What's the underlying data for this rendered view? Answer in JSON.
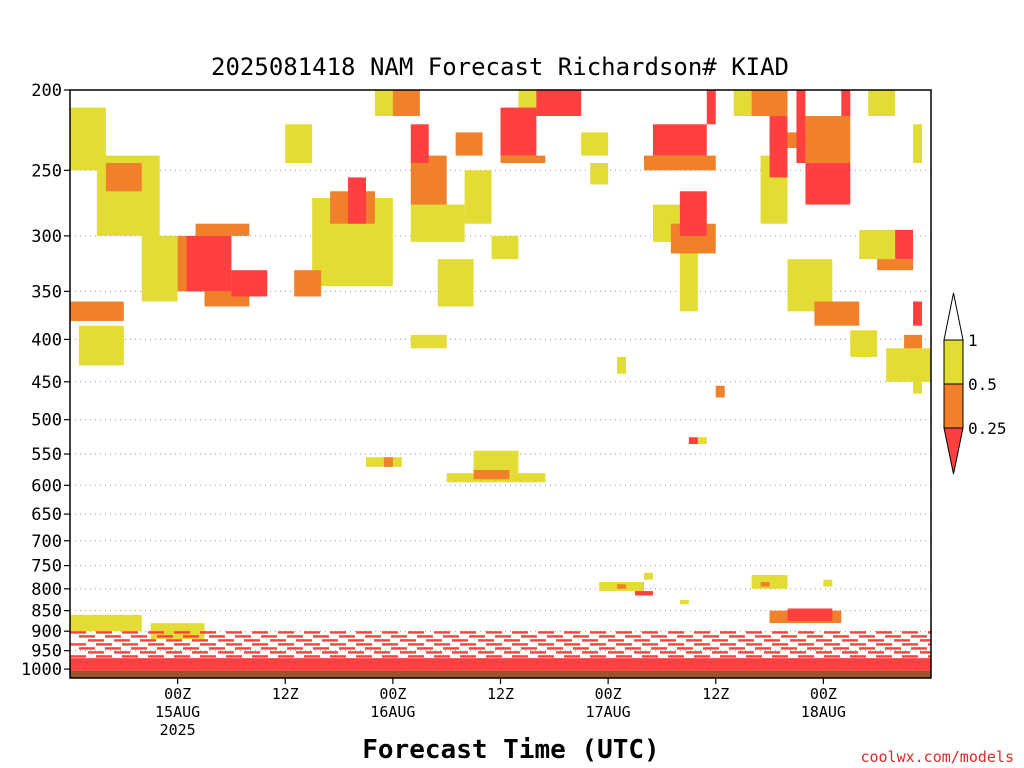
{
  "chart_data": {
    "type": "heatmap",
    "title": "2025081418 NAM Forecast Richardson# KIAD",
    "xlabel": "Forecast Time (UTC)",
    "ylabel": "",
    "credit": "coolwx.com/models",
    "y_scale": "pressure (inverted)",
    "ylim": [
      1025,
      200
    ],
    "xlim": [
      -6,
      36
    ],
    "y_ticks": [
      200,
      250,
      300,
      350,
      400,
      450,
      500,
      550,
      600,
      650,
      700,
      750,
      800,
      850,
      900,
      950,
      1000
    ],
    "x_ticks": [
      {
        "x": 0,
        "labels": [
          "00Z",
          "15AUG",
          "2025"
        ]
      },
      {
        "x": 6,
        "labels": [
          "12Z"
        ]
      },
      {
        "x": 12,
        "labels": [
          "00Z",
          "16AUG"
        ]
      },
      {
        "x": 18,
        "labels": [
          "12Z"
        ]
      },
      {
        "x": 24,
        "labels": [
          "00Z",
          "17AUG"
        ]
      },
      {
        "x": 30,
        "labels": [
          "12Z"
        ]
      },
      {
        "x": 36,
        "labels": [
          "00Z",
          "18AUG"
        ]
      }
    ],
    "grid": "dotted horizontal lines at each pressure tick",
    "legend": {
      "placement": "right",
      "bins": [
        {
          "range": "< 0.25",
          "color": "#ff4040"
        },
        {
          "range": "0.25 - 0.5",
          "color": "#f0802a"
        },
        {
          "range": "0.5 - 1",
          "color": "#e2dc34"
        },
        {
          "range": "> 1",
          "color": "#ffffff"
        }
      ],
      "labels": [
        "1",
        "0.5",
        "0.25"
      ]
    },
    "surface_color": "#9c532c",
    "regions": [
      {
        "level": "red",
        "x": [
          0.5,
          3.0
        ],
        "p": [
          300,
          350
        ]
      },
      {
        "level": "red",
        "x": [
          3.0,
          5.0
        ],
        "p": [
          330,
          355
        ]
      },
      {
        "level": "red",
        "x": [
          9.5,
          10.5
        ],
        "p": [
          255,
          290
        ]
      },
      {
        "level": "red",
        "x": [
          13.0,
          14.0
        ],
        "p": [
          220,
          245
        ]
      },
      {
        "level": "red",
        "x": [
          18.0,
          20.0
        ],
        "p": [
          210,
          240
        ]
      },
      {
        "level": "red",
        "x": [
          20.0,
          22.5
        ],
        "p": [
          200,
          215
        ]
      },
      {
        "level": "red",
        "x": [
          26.5,
          29.5
        ],
        "p": [
          220,
          240
        ]
      },
      {
        "level": "red",
        "x": [
          28.0,
          29.5
        ],
        "p": [
          265,
          300
        ]
      },
      {
        "level": "red",
        "x": [
          29.5,
          30.0
        ],
        "p": [
          200,
          220
        ]
      },
      {
        "level": "red",
        "x": [
          33.0,
          34.0
        ],
        "p": [
          215,
          255
        ]
      },
      {
        "level": "red",
        "x": [
          34.5,
          35.0
        ],
        "p": [
          200,
          245
        ]
      },
      {
        "level": "red",
        "x": [
          35.0,
          37.5
        ],
        "p": [
          245,
          275
        ]
      },
      {
        "level": "red",
        "x": [
          37.0,
          37.5
        ],
        "p": [
          200,
          215
        ]
      },
      {
        "level": "red",
        "x": [
          40.0,
          41.0
        ],
        "p": [
          295,
          320
        ]
      },
      {
        "level": "red",
        "x": [
          41.0,
          41.5
        ],
        "p": [
          360,
          385
        ]
      },
      {
        "level": "orange",
        "x": [
          0.0,
          1.5
        ],
        "p": [
          300,
          350
        ]
      },
      {
        "level": "orange",
        "x": [
          1.0,
          4.0
        ],
        "p": [
          290,
          300
        ]
      },
      {
        "level": "orange",
        "x": [
          1.5,
          4.0
        ],
        "p": [
          350,
          365
        ]
      },
      {
        "level": "orange",
        "x": [
          -6.0,
          -3.0
        ],
        "p": [
          360,
          380
        ]
      },
      {
        "level": "orange",
        "x": [
          -4.0,
          -2.0
        ],
        "p": [
          245,
          265
        ]
      },
      {
        "level": "orange",
        "x": [
          6.5,
          8.0
        ],
        "p": [
          330,
          355
        ]
      },
      {
        "level": "orange",
        "x": [
          8.5,
          11.0
        ],
        "p": [
          265,
          290
        ]
      },
      {
        "level": "orange",
        "x": [
          12.0,
          13.5
        ],
        "p": [
          200,
          215
        ]
      },
      {
        "level": "orange",
        "x": [
          13.0,
          15.0
        ],
        "p": [
          240,
          275
        ]
      },
      {
        "level": "orange",
        "x": [
          15.5,
          17.0
        ],
        "p": [
          225,
          240
        ]
      },
      {
        "level": "orange",
        "x": [
          18.0,
          20.5
        ],
        "p": [
          240,
          245
        ]
      },
      {
        "level": "orange",
        "x": [
          26.0,
          30.0
        ],
        "p": [
          240,
          250
        ]
      },
      {
        "level": "orange",
        "x": [
          27.5,
          30.0
        ],
        "p": [
          290,
          315
        ]
      },
      {
        "level": "orange",
        "x": [
          32.0,
          34.0
        ],
        "p": [
          200,
          215
        ]
      },
      {
        "level": "orange",
        "x": [
          33.0,
          35.0
        ],
        "p": [
          225,
          235
        ]
      },
      {
        "level": "orange",
        "x": [
          35.0,
          37.5
        ],
        "p": [
          215,
          245
        ]
      },
      {
        "level": "orange",
        "x": [
          35.5,
          38.0
        ],
        "p": [
          360,
          385
        ]
      },
      {
        "level": "orange",
        "x": [
          39.0,
          41.0
        ],
        "p": [
          320,
          330
        ]
      },
      {
        "level": "orange",
        "x": [
          40.5,
          41.5
        ],
        "p": [
          395,
          410
        ]
      },
      {
        "level": "yellow",
        "x": [
          -4.5,
          -1.0
        ],
        "p": [
          240,
          300
        ]
      },
      {
        "level": "yellow",
        "x": [
          -2.0,
          0.0
        ],
        "p": [
          300,
          360
        ]
      },
      {
        "level": "yellow",
        "x": [
          -6.0,
          -4.0
        ],
        "p": [
          210,
          250
        ]
      },
      {
        "level": "yellow",
        "x": [
          -5.5,
          -3.0
        ],
        "p": [
          385,
          430
        ]
      },
      {
        "level": "yellow",
        "x": [
          6.0,
          7.5
        ],
        "p": [
          220,
          245
        ]
      },
      {
        "level": "yellow",
        "x": [
          7.5,
          12.0
        ],
        "p": [
          270,
          345
        ]
      },
      {
        "level": "yellow",
        "x": [
          11.0,
          13.5
        ],
        "p": [
          200,
          215
        ]
      },
      {
        "level": "yellow",
        "x": [
          13.0,
          16.0
        ],
        "p": [
          275,
          305
        ]
      },
      {
        "level": "yellow",
        "x": [
          14.5,
          16.5
        ],
        "p": [
          320,
          365
        ]
      },
      {
        "level": "yellow",
        "x": [
          16.0,
          17.5
        ],
        "p": [
          250,
          290
        ]
      },
      {
        "level": "yellow",
        "x": [
          13.0,
          15.0
        ],
        "p": [
          395,
          410
        ]
      },
      {
        "level": "yellow",
        "x": [
          17.5,
          19.0
        ],
        "p": [
          300,
          320
        ]
      },
      {
        "level": "yellow",
        "x": [
          19.0,
          20.5
        ],
        "p": [
          200,
          215
        ]
      },
      {
        "level": "yellow",
        "x": [
          22.5,
          24.0
        ],
        "p": [
          225,
          240
        ]
      },
      {
        "level": "yellow",
        "x": [
          23.0,
          24.0
        ],
        "p": [
          245,
          260
        ]
      },
      {
        "level": "yellow",
        "x": [
          26.5,
          28.5
        ],
        "p": [
          275,
          305
        ]
      },
      {
        "level": "yellow",
        "x": [
          28.0,
          29.0
        ],
        "p": [
          310,
          370
        ]
      },
      {
        "level": "yellow",
        "x": [
          31.0,
          33.0
        ],
        "p": [
          200,
          215
        ]
      },
      {
        "level": "yellow",
        "x": [
          32.5,
          34.0
        ],
        "p": [
          240,
          290
        ]
      },
      {
        "level": "yellow",
        "x": [
          34.0,
          36.5
        ],
        "p": [
          320,
          370
        ]
      },
      {
        "level": "yellow",
        "x": [
          38.0,
          40.0
        ],
        "p": [
          295,
          320
        ]
      },
      {
        "level": "yellow",
        "x": [
          38.5,
          40.0
        ],
        "p": [
          200,
          215
        ]
      },
      {
        "level": "yellow",
        "x": [
          39.5,
          42.0
        ],
        "p": [
          410,
          450
        ]
      },
      {
        "level": "yellow",
        "x": [
          37.5,
          39.0
        ],
        "p": [
          390,
          420
        ]
      },
      {
        "level": "yellow",
        "x": [
          41.0,
          41.5
        ],
        "p": [
          220,
          245
        ]
      },
      {
        "level": "yellow",
        "x": [
          41.0,
          41.5
        ],
        "p": [
          445,
          465
        ]
      },
      {
        "level": "yellow",
        "x": [
          24.5,
          25.0
        ],
        "p": [
          420,
          440
        ]
      },
      {
        "level": "orange",
        "x": [
          30.0,
          30.5
        ],
        "p": [
          455,
          470
        ]
      },
      {
        "level": "red",
        "x": [
          28.5,
          29.0
        ],
        "p": [
          525,
          535
        ]
      },
      {
        "level": "yellow",
        "x": [
          29.0,
          29.5
        ],
        "p": [
          525,
          535
        ]
      },
      {
        "level": "yellow",
        "x": [
          10.5,
          12.5
        ],
        "p": [
          555,
          570
        ]
      },
      {
        "level": "orange",
        "x": [
          11.5,
          12.0
        ],
        "p": [
          555,
          570
        ]
      },
      {
        "level": "yellow",
        "x": [
          16.5,
          19.0
        ],
        "p": [
          545,
          580
        ]
      },
      {
        "level": "orange",
        "x": [
          16.5,
          18.5
        ],
        "p": [
          575,
          590
        ]
      },
      {
        "level": "yellow",
        "x": [
          15.0,
          20.5
        ],
        "p": [
          580,
          595
        ]
      },
      {
        "level": "yellow",
        "x": [
          23.5,
          26.0
        ],
        "p": [
          785,
          805
        ]
      },
      {
        "level": "orange",
        "x": [
          24.5,
          25.0
        ],
        "p": [
          790,
          800
        ]
      },
      {
        "level": "red",
        "x": [
          25.5,
          26.5
        ],
        "p": [
          805,
          815
        ]
      },
      {
        "level": "yellow",
        "x": [
          26.0,
          26.5
        ],
        "p": [
          765,
          780
        ]
      },
      {
        "level": "yellow",
        "x": [
          28.0,
          28.5
        ],
        "p": [
          825,
          835
        ]
      },
      {
        "level": "yellow",
        "x": [
          32.0,
          34.0
        ],
        "p": [
          770,
          800
        ]
      },
      {
        "level": "orange",
        "x": [
          32.5,
          33.0
        ],
        "p": [
          785,
          795
        ]
      },
      {
        "level": "yellow",
        "x": [
          36.0,
          36.5
        ],
        "p": [
          780,
          795
        ]
      },
      {
        "level": "orange",
        "x": [
          33.0,
          37.0
        ],
        "p": [
          850,
          880
        ]
      },
      {
        "level": "red",
        "x": [
          34.0,
          36.5
        ],
        "p": [
          845,
          875
        ]
      },
      {
        "level": "yellow",
        "x": [
          -1.5,
          1.5
        ],
        "p": [
          880,
          920
        ]
      },
      {
        "level": "yellow",
        "x": [
          -6.0,
          -2.0
        ],
        "p": [
          860,
          900
        ]
      },
      {
        "level": "red",
        "x": [
          -6.0,
          42.0
        ],
        "p": [
          970,
          1005
        ]
      },
      {
        "level": "red",
        "x": [
          -6.0,
          42.0
        ],
        "p": [
          900,
          965
        ],
        "striped": true
      }
    ]
  }
}
